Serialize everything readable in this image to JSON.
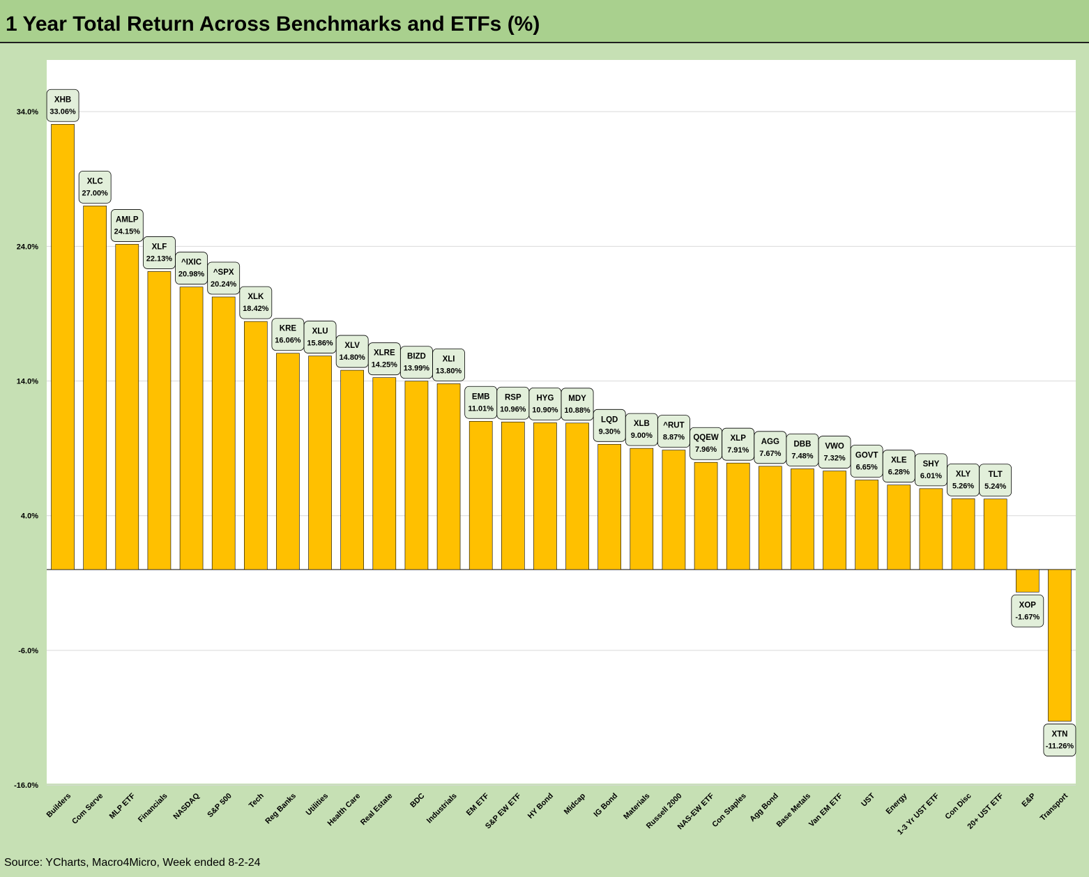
{
  "title": "1 Year Total Return Across Benchmarks and ETFs (%)",
  "source": "Source: YCharts, Macro4Micro, Week ended 8-2-24",
  "colors": {
    "bar": "#ffc000",
    "bar_stroke": "#000000",
    "label_box": "#e2efda",
    "label_border": "#000000",
    "title_bar": "#a9d08e",
    "background": "#c6e0b4",
    "gridline": "#d9d9d9"
  },
  "chart_data": {
    "type": "bar",
    "title": "1 Year Total Return Across Benchmarks and ETFs (%)",
    "xlabel": "",
    "ylabel": "",
    "ylim": [
      -16,
      38
    ],
    "y_ticks": [
      {
        "value": 34,
        "label": "34.0%"
      },
      {
        "value": 24,
        "label": "24.0%"
      },
      {
        "value": 14,
        "label": "14.0%"
      },
      {
        "value": 4,
        "label": "4.0%"
      },
      {
        "value": -6,
        "label": "-6.0%"
      },
      {
        "value": -16,
        "label": "-16.0%"
      }
    ],
    "grid": true,
    "legend": "none",
    "categories": [
      "Builders",
      "Com Serve",
      "MLP ETF",
      "Financials",
      "NASDAQ",
      "S&P 500",
      "Tech",
      "Reg Banks",
      "Utilities",
      "Health Care",
      "Real Estate",
      "BDC",
      "Industrials",
      "EM ETF",
      "S&P EW ETF",
      "HY Bond",
      "Midcap",
      "IG Bond",
      "Materials",
      "Russell 2000",
      "NAS-EW ETF",
      "Con Staples",
      "Agg Bond",
      "Base Metals",
      "Van EM ETF",
      "UST",
      "Energy",
      "1-3 Yr UST ETF",
      "Con Disc",
      "20+ UST ETF",
      "E&P",
      "Transport"
    ],
    "tickers": [
      "XHB",
      "XLC",
      "AMLP",
      "XLF",
      "^IXIC",
      "^SPX",
      "XLK",
      "KRE",
      "XLU",
      "XLV",
      "XLRE",
      "BIZD",
      "XLI",
      "EMB",
      "RSP",
      "HYG",
      "MDY",
      "LQD",
      "XLB",
      "^RUT",
      "QQEW",
      "XLP",
      "AGG",
      "DBB",
      "VWO",
      "GOVT",
      "XLE",
      "SHY",
      "XLY",
      "TLT",
      "XOP",
      "XTN"
    ],
    "values": [
      33.06,
      27.0,
      24.15,
      22.13,
      20.98,
      20.24,
      18.42,
      16.06,
      15.86,
      14.8,
      14.25,
      13.99,
      13.8,
      11.01,
      10.96,
      10.9,
      10.88,
      9.3,
      9.0,
      8.87,
      7.96,
      7.91,
      7.67,
      7.48,
      7.32,
      6.65,
      6.28,
      6.01,
      5.26,
      5.24,
      -1.67,
      -11.26
    ],
    "value_labels": [
      "33.06%",
      "27.00%",
      "24.15%",
      "22.13%",
      "20.98%",
      "20.24%",
      "18.42%",
      "16.06%",
      "15.86%",
      "14.80%",
      "14.25%",
      "13.99%",
      "13.80%",
      "11.01%",
      "10.96%",
      "10.90%",
      "10.88%",
      "9.30%",
      "9.00%",
      "8.87%",
      "7.96%",
      "7.91%",
      "7.67%",
      "7.48%",
      "7.32%",
      "6.65%",
      "6.28%",
      "6.01%",
      "5.26%",
      "5.24%",
      "-1.67%",
      "-11.26%"
    ]
  }
}
